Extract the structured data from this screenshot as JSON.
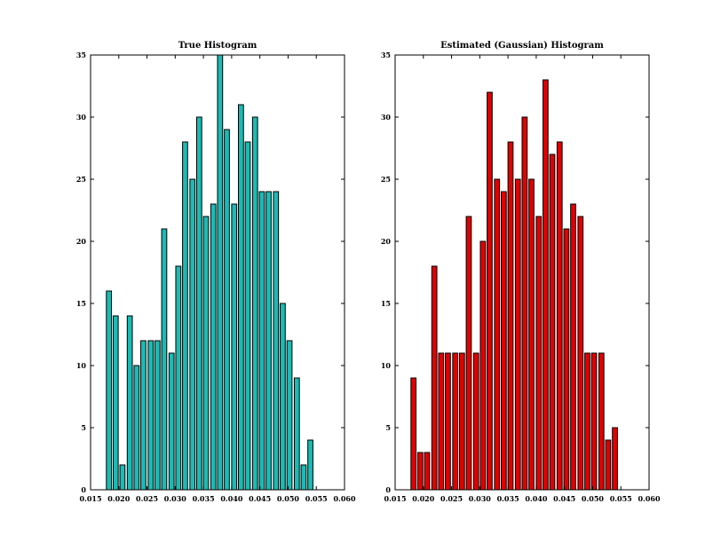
{
  "chart_data": [
    {
      "type": "bar",
      "title": "True Histogram",
      "xlabel": "",
      "ylabel": "",
      "xlim": [
        0.015,
        0.06
      ],
      "ylim": [
        0,
        35
      ],
      "xticks": [
        0.015,
        0.02,
        0.025,
        0.03,
        0.035,
        0.04,
        0.045,
        0.05,
        0.055,
        0.06
      ],
      "xtick_labels": [
        "0.015",
        "0.020",
        "0.025",
        "0.030",
        "0.035",
        "0.040",
        "0.045",
        "0.050",
        "0.055",
        "0.060"
      ],
      "yticks": [
        0,
        5,
        10,
        15,
        20,
        25,
        30,
        35
      ],
      "ytick_labels": [
        "0",
        "5",
        "10",
        "15",
        "20",
        "25",
        "30",
        "35"
      ],
      "bar_color": "#1abbb4",
      "bar_edge_color": "#000000",
      "bar_width": 0.0009,
      "x": [
        0.0178,
        0.019,
        0.0202,
        0.0215,
        0.0227,
        0.0239,
        0.0252,
        0.0264,
        0.0276,
        0.0289,
        0.0301,
        0.0313,
        0.0326,
        0.0338,
        0.035,
        0.0363,
        0.0375,
        0.0387,
        0.04,
        0.0412,
        0.0424,
        0.0437,
        0.0449,
        0.0461,
        0.0474,
        0.0486,
        0.0498,
        0.0511,
        0.0523,
        0.0535,
        0.0548,
        0.056
      ],
      "values": [
        16,
        14,
        2,
        14,
        10,
        12,
        12,
        12,
        21,
        11,
        18,
        28,
        25,
        30,
        22,
        23,
        35,
        29,
        23,
        31,
        28,
        30,
        24,
        24,
        24,
        15,
        12,
        9,
        2,
        4,
        0,
        0
      ]
    },
    {
      "type": "bar",
      "title": "Estimated (Gaussian) Histogram",
      "xlabel": "",
      "ylabel": "",
      "xlim": [
        0.015,
        0.06
      ],
      "ylim": [
        0,
        35
      ],
      "xticks": [
        0.015,
        0.02,
        0.025,
        0.03,
        0.035,
        0.04,
        0.045,
        0.05,
        0.055,
        0.06
      ],
      "xtick_labels": [
        "0.015",
        "0.020",
        "0.025",
        "0.030",
        "0.035",
        "0.040",
        "0.045",
        "0.050",
        "0.055",
        "0.060"
      ],
      "yticks": [
        0,
        5,
        10,
        15,
        20,
        25,
        30,
        35
      ],
      "ytick_labels": [
        "0",
        "5",
        "10",
        "15",
        "20",
        "25",
        "30",
        "35"
      ],
      "bar_color": "#e00000",
      "bar_edge_color": "#000000",
      "bar_width": 0.0009,
      "x": [
        0.0178,
        0.019,
        0.0202,
        0.0215,
        0.0227,
        0.0239,
        0.0252,
        0.0264,
        0.0276,
        0.0289,
        0.0301,
        0.0313,
        0.0326,
        0.0338,
        0.035,
        0.0363,
        0.0375,
        0.0387,
        0.04,
        0.0412,
        0.0424,
        0.0437,
        0.0449,
        0.0461,
        0.0474,
        0.0486,
        0.0498,
        0.0511,
        0.0523,
        0.0535,
        0.0548,
        0.056
      ],
      "values": [
        9,
        3,
        3,
        18,
        11,
        11,
        11,
        11,
        22,
        11,
        20,
        32,
        25,
        24,
        28,
        25,
        30,
        25,
        22,
        33,
        27,
        28,
        21,
        23,
        22,
        11,
        11,
        11,
        4,
        5,
        0,
        0
      ]
    }
  ]
}
